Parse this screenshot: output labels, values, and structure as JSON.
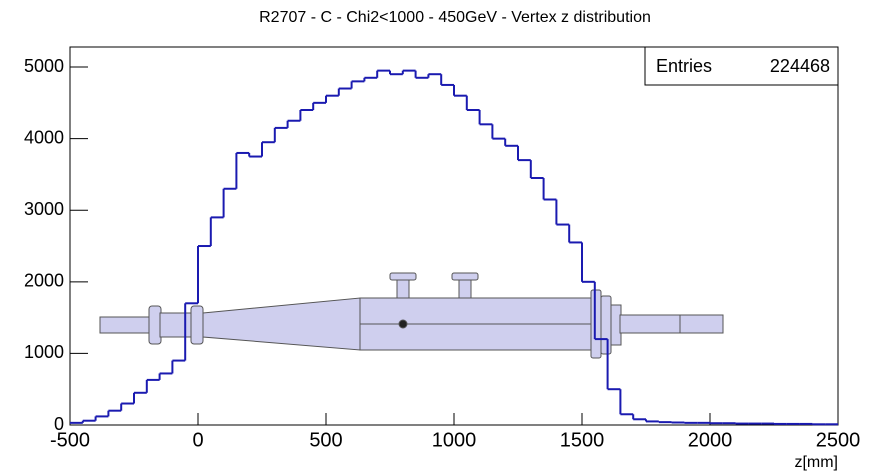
{
  "chart_data": {
    "type": "histogram",
    "title": "R2707 - C - Chi2<1000 - 450GeV - Vertex z distribution",
    "x_label": "z[mm]",
    "stats": {
      "label": "Entries",
      "value": 224468
    },
    "color": "#1a1ab0",
    "bins": [
      -500,
      -450,
      -400,
      -350,
      -300,
      -250,
      -200,
      -150,
      -100,
      -50,
      0,
      50,
      100,
      150,
      200,
      250,
      300,
      350,
      400,
      450,
      500,
      550,
      600,
      650,
      700,
      750,
      800,
      850,
      900,
      950,
      1000,
      1050,
      1100,
      1150,
      1200,
      1250,
      1300,
      1350,
      1400,
      1450,
      1500,
      1550,
      1600,
      1650,
      1700,
      1750,
      1800,
      1850,
      1900,
      1950,
      2000,
      2050,
      2100,
      2150,
      2200,
      2250,
      2300,
      2350,
      2400,
      2450,
      2500
    ],
    "values": [
      30,
      60,
      120,
      200,
      300,
      450,
      630,
      720,
      900,
      1700,
      2500,
      2900,
      3300,
      3800,
      3750,
      3950,
      4150,
      4250,
      4400,
      4500,
      4600,
      4700,
      4800,
      4850,
      4950,
      4900,
      4950,
      4850,
      4900,
      4750,
      4600,
      4400,
      4200,
      4000,
      3900,
      3700,
      3450,
      3150,
      2800,
      2550,
      2000,
      1200,
      500,
      150,
      80,
      50,
      40,
      35,
      30,
      30,
      25,
      25,
      20,
      20,
      20,
      15,
      15,
      15,
      10,
      10
    ],
    "xlim": [
      -500,
      2500
    ],
    "xticks": [
      -500,
      0,
      500,
      1000,
      1500,
      2000,
      2500
    ],
    "ylim": [
      0,
      5280
    ],
    "yticks": [
      0,
      1000,
      2000,
      3000,
      4000,
      5000
    ]
  }
}
